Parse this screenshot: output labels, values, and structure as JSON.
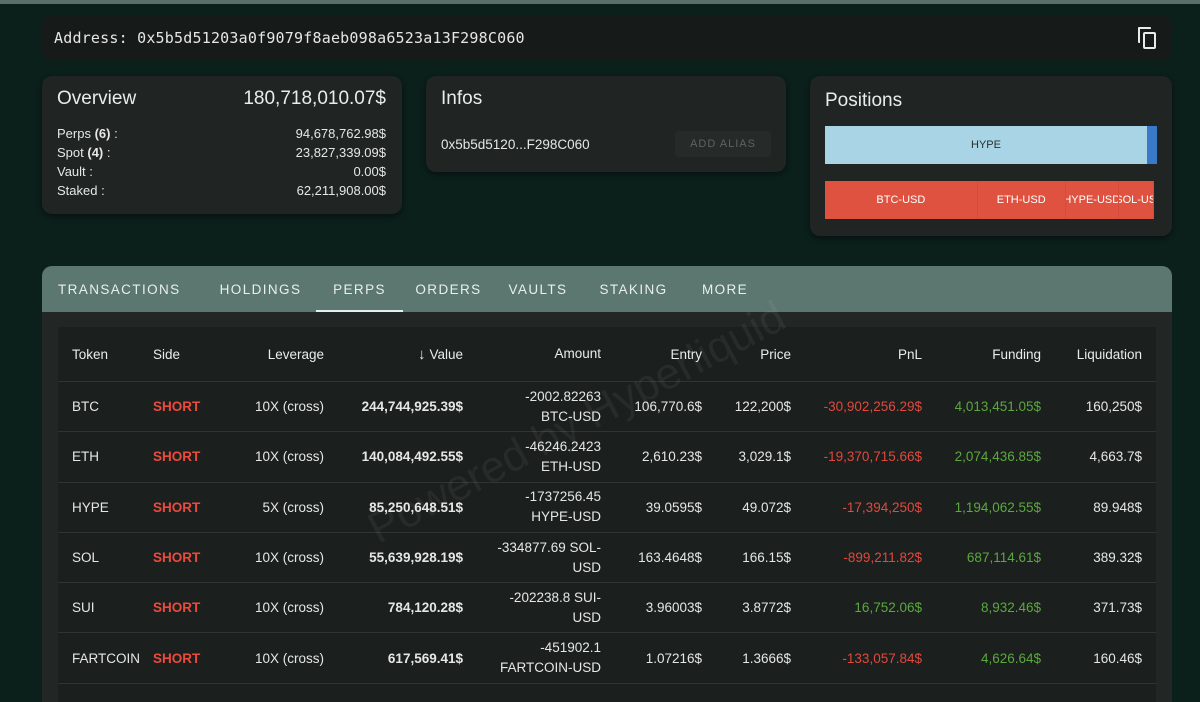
{
  "address": {
    "label": "Address:",
    "value": "0x5b5d51203a0f9079f8aeb098a6523a13F298C060"
  },
  "overview": {
    "title": "Overview",
    "total": "180,718,010.07$",
    "rows": [
      {
        "label": "Perps",
        "count": "(6)",
        "suffix": " :",
        "value": "94,678,762.98$"
      },
      {
        "label": "Spot",
        "count": "(4)",
        "suffix": " :",
        "value": "23,827,339.09$"
      },
      {
        "label": "Vault :",
        "value": "0.00$"
      },
      {
        "label": "Staked :",
        "value": "62,211,908.00$"
      }
    ]
  },
  "infos": {
    "title": "Infos",
    "short_address": "0x5b5d5120...F298C060",
    "add_alias_label": "ADD ALIAS"
  },
  "positions": {
    "title": "Positions",
    "long_bar": [
      {
        "label": "HYPE",
        "share": 0.97
      },
      {
        "label": "",
        "share": 0.03
      }
    ],
    "short_bar": [
      {
        "label": "BTC-USD",
        "share": 0.46
      },
      {
        "label": "ETH-USD",
        "share": 0.265
      },
      {
        "label": "HYPE-USD",
        "share": 0.16
      },
      {
        "label": "SOL-US",
        "share": 0.105
      }
    ],
    "colors": {
      "long": "#a8d4e6",
      "long_edge": "#3a79c8",
      "short": "#e05240"
    }
  },
  "tabs": [
    "TRANSACTIONS",
    "HOLDINGS",
    "PERPS",
    "ORDERS",
    "VAULTS",
    "STAKING",
    "MORE"
  ],
  "active_tab": "PERPS",
  "table": {
    "headers": {
      "token": "Token",
      "side": "Side",
      "leverage": "Leverage",
      "value": "Value",
      "amount": "Amount",
      "entry": "Entry",
      "price": "Price",
      "pnl": "PnL",
      "funding": "Funding",
      "liquidation": "Liquidation"
    },
    "rows": [
      {
        "token": "BTC",
        "side": "SHORT",
        "leverage": "10X (cross)",
        "value": "244,744,925.39$",
        "amount_1": "-2002.82263",
        "amount_2": "BTC-USD",
        "entry": "106,770.6$",
        "price": "122,200$",
        "pnl": "-30,902,256.29$",
        "funding": "4,013,451.05$",
        "liquidation": "160,250$"
      },
      {
        "token": "ETH",
        "side": "SHORT",
        "leverage": "10X (cross)",
        "value": "140,084,492.55$",
        "amount_1": "-46246.2423",
        "amount_2": "ETH-USD",
        "entry": "2,610.23$",
        "price": "3,029.1$",
        "pnl": "-19,370,715.66$",
        "funding": "2,074,436.85$",
        "liquidation": "4,663.7$"
      },
      {
        "token": "HYPE",
        "side": "SHORT",
        "leverage": "5X (cross)",
        "value": "85,250,648.51$",
        "amount_1": "-1737256.45",
        "amount_2": "HYPE-USD",
        "entry": "39.0595$",
        "price": "49.072$",
        "pnl": "-17,394,250$",
        "funding": "1,194,062.55$",
        "liquidation": "89.948$"
      },
      {
        "token": "SOL",
        "side": "SHORT",
        "leverage": "10X (cross)",
        "value": "55,639,928.19$",
        "amount_1": "-334877.69 SOL-",
        "amount_2": "USD",
        "entry": "163.4648$",
        "price": "166.15$",
        "pnl": "-899,211.82$",
        "funding": "687,114.61$",
        "liquidation": "389.32$"
      },
      {
        "token": "SUI",
        "side": "SHORT",
        "leverage": "10X (cross)",
        "value": "784,120.28$",
        "amount_1": "-202238.8 SUI-",
        "amount_2": "USD",
        "entry": "3.96003$",
        "price": "3.8772$",
        "pnl": "16,752.06$",
        "funding": "8,932.46$",
        "liquidation": "371.73$"
      },
      {
        "token": "FARTCOIN",
        "side": "SHORT",
        "leverage": "10X (cross)",
        "value": "617,569.41$",
        "amount_1": "-451902.1",
        "amount_2": "FARTCOIN-USD",
        "entry": "1.07216$",
        "price": "1.3666$",
        "pnl": "-133,057.84$",
        "funding": "4,626.64$",
        "liquidation": "160.46$"
      }
    ]
  },
  "watermark": "Powered by Hyperliquid"
}
